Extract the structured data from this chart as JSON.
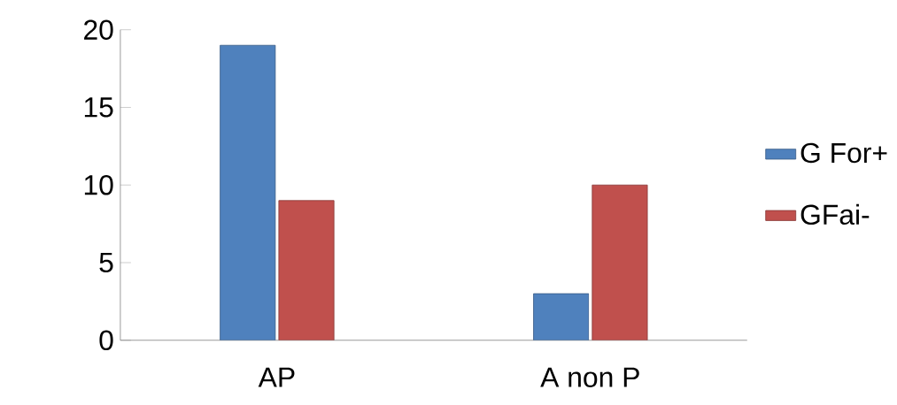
{
  "chart_data": {
    "type": "bar",
    "categories": [
      "AP",
      "A non P"
    ],
    "series": [
      {
        "name": "G For+",
        "color": "#4f81bd",
        "values": [
          19,
          3
        ]
      },
      {
        "name": "GFai-",
        "color": "#c0504d",
        "values": [
          9,
          10
        ]
      }
    ],
    "ylim": [
      0,
      20
    ],
    "yticks": [
      0,
      5,
      10,
      15,
      20
    ],
    "grid": false,
    "legend": "right"
  }
}
